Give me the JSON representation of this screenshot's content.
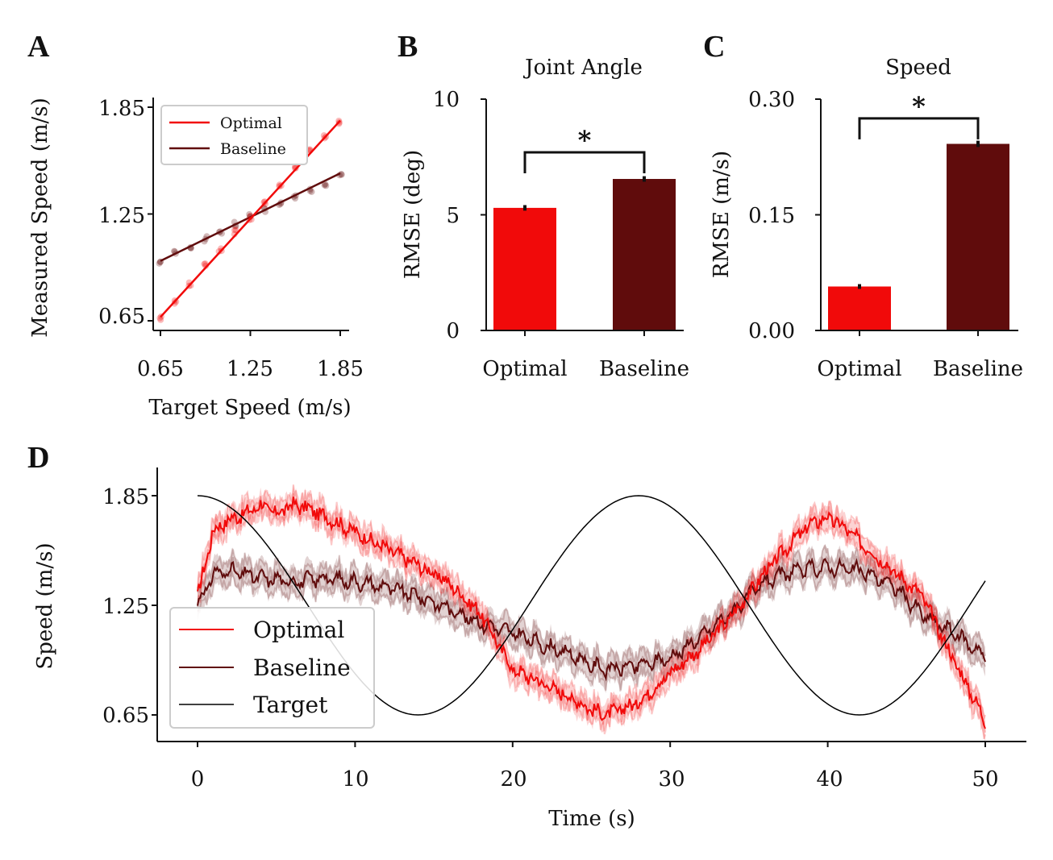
{
  "colors": {
    "optimal": "#f10a0a",
    "baseline": "#600c0c",
    "target": "#000000"
  },
  "chart_data": [
    {
      "panel": "A",
      "type": "scatter",
      "xlabel": "Target Speed (m/s)",
      "ylabel": "Measured Speed (m/s)",
      "xticks": [
        "0.65",
        "1.25",
        "1.85"
      ],
      "yticks": [
        "0.65",
        "1.25",
        "1.85"
      ],
      "xlim": [
        0.6,
        1.9
      ],
      "ylim": [
        0.6,
        1.9
      ],
      "legend": [
        "Optimal",
        "Baseline"
      ],
      "series": [
        {
          "name": "Optimal",
          "fit": {
            "slope": 0.92,
            "intercept": 0.073
          },
          "x": [
            0.65,
            0.75,
            0.85,
            0.95,
            1.05,
            1.15,
            1.25,
            1.35,
            1.45,
            1.55,
            1.65,
            1.75,
            1.85
          ],
          "y": [
            0.67,
            0.75,
            0.85,
            0.96,
            1.05,
            1.15,
            1.23,
            1.32,
            1.42,
            1.52,
            1.6,
            1.68,
            1.77
          ]
        },
        {
          "name": "Baseline",
          "fit": {
            "slope": 0.41,
            "intercept": 0.72
          },
          "x": [
            0.65,
            0.75,
            0.85,
            0.95,
            1.05,
            1.15,
            1.25,
            1.35,
            1.45,
            1.55,
            1.65,
            1.75,
            1.85
          ],
          "y": [
            0.98,
            1.03,
            1.07,
            1.11,
            1.15,
            1.19,
            1.24,
            1.27,
            1.31,
            1.35,
            1.38,
            1.42,
            1.46
          ]
        }
      ]
    },
    {
      "panel": "B",
      "type": "bar",
      "title": "Joint Angle",
      "ylabel": "RMSE (deg)",
      "categories": [
        "Optimal",
        "Baseline"
      ],
      "values": [
        5.3,
        6.55
      ],
      "errors": [
        0.05,
        0.05
      ],
      "ylim": [
        0,
        10
      ],
      "yticks": [
        "0",
        "5",
        "10"
      ],
      "significance": "*",
      "sig_y": 7.7
    },
    {
      "panel": "C",
      "type": "bar",
      "title": "Speed",
      "ylabel": "RMSE (m/s)",
      "categories": [
        "Optimal",
        "Baseline"
      ],
      "values": [
        0.057,
        0.242
      ],
      "errors": [
        0.001,
        0.002
      ],
      "ylim": [
        0,
        0.3
      ],
      "yticks": [
        "0.00",
        "0.15",
        "0.30"
      ],
      "significance": "*",
      "sig_y": 0.275
    },
    {
      "panel": "D",
      "type": "line",
      "xlabel": "Time (s)",
      "ylabel": "Speed (m/s)",
      "xlim": [
        -2.5,
        52.5
      ],
      "ylim": [
        0.5,
        2.0
      ],
      "xticks": [
        "0",
        "10",
        "20",
        "30",
        "40",
        "50"
      ],
      "yticks": [
        "0.65",
        "1.25",
        "1.85"
      ],
      "legend": [
        "Optimal",
        "Baseline",
        "Target"
      ],
      "series": [
        {
          "name": "Optimal",
          "x": [
            0,
            1,
            2,
            3,
            4,
            5,
            6,
            7,
            8,
            10,
            12,
            14,
            16,
            18,
            20,
            22,
            24,
            25,
            26,
            28,
            30,
            32,
            34,
            36,
            38,
            39,
            40,
            41,
            42,
            44,
            46,
            48,
            50
          ],
          "y": [
            1.3,
            1.66,
            1.72,
            1.75,
            1.8,
            1.75,
            1.8,
            1.78,
            1.74,
            1.65,
            1.56,
            1.47,
            1.37,
            1.2,
            0.9,
            0.82,
            0.73,
            0.68,
            0.65,
            0.72,
            0.88,
            1.02,
            1.2,
            1.43,
            1.62,
            1.7,
            1.73,
            1.68,
            1.6,
            1.45,
            1.3,
            0.95,
            0.62
          ]
        },
        {
          "name": "Baseline",
          "x": [
            0,
            1,
            2,
            4,
            6,
            8,
            10,
            12,
            14,
            16,
            18,
            20,
            22,
            24,
            25,
            26,
            28,
            30,
            32,
            34,
            36,
            38,
            40,
            42,
            44,
            46,
            48,
            50
          ],
          "y": [
            1.25,
            1.42,
            1.44,
            1.4,
            1.38,
            1.4,
            1.38,
            1.35,
            1.3,
            1.23,
            1.15,
            1.1,
            1.03,
            0.97,
            0.92,
            0.9,
            0.92,
            0.96,
            1.08,
            1.22,
            1.38,
            1.44,
            1.46,
            1.44,
            1.37,
            1.2,
            1.1,
            0.97
          ]
        },
        {
          "name": "Target",
          "period_s": 28,
          "mean": 1.25,
          "amplitude": 0.6,
          "x_range": [
            0,
            50
          ]
        }
      ]
    }
  ]
}
